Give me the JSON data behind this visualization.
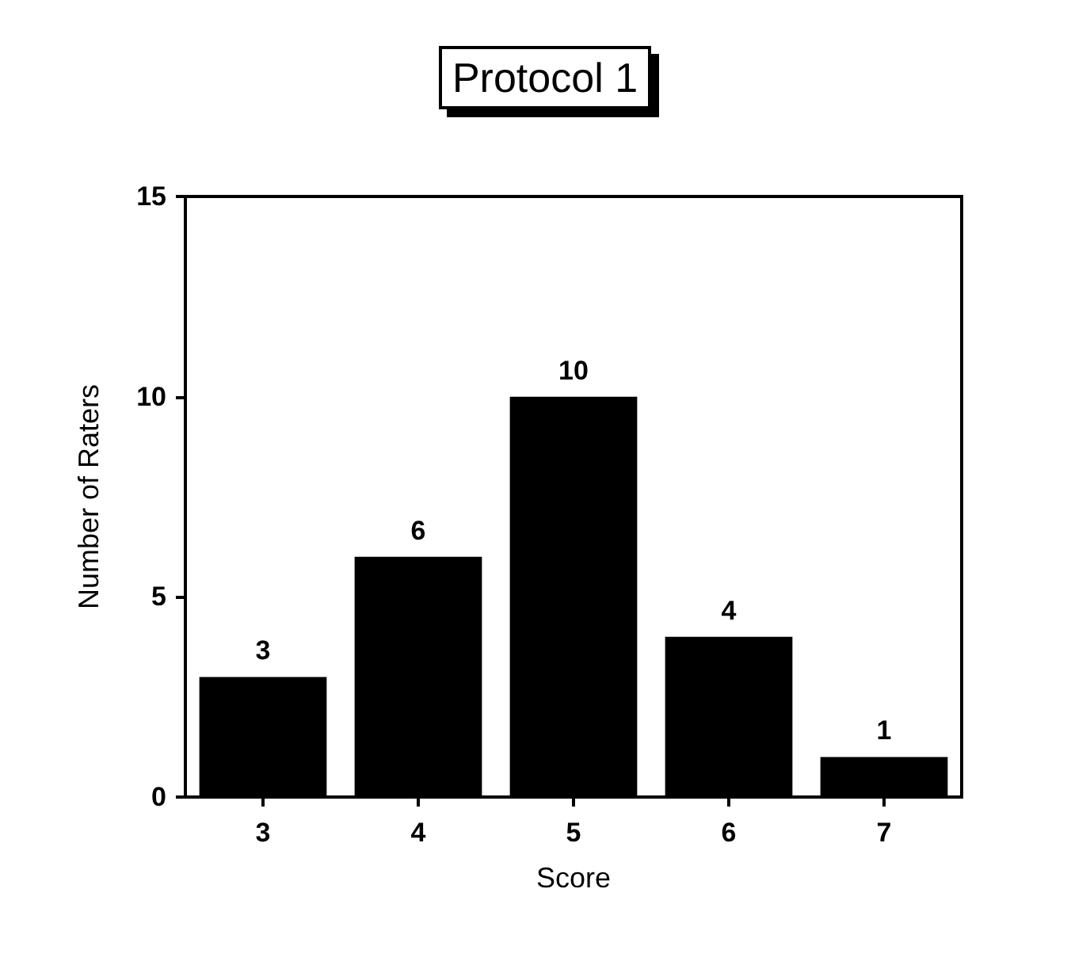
{
  "chart_data": {
    "type": "bar",
    "title": "Protocol 1",
    "xlabel": "Score",
    "ylabel": "Number of Raters",
    "categories": [
      "3",
      "4",
      "5",
      "6",
      "7"
    ],
    "values": [
      3,
      6,
      10,
      4,
      1
    ],
    "color": "#000000",
    "ylim": [
      0,
      15
    ],
    "yticks": [
      0,
      5,
      10,
      15
    ],
    "data_labels": true,
    "grid": false
  }
}
